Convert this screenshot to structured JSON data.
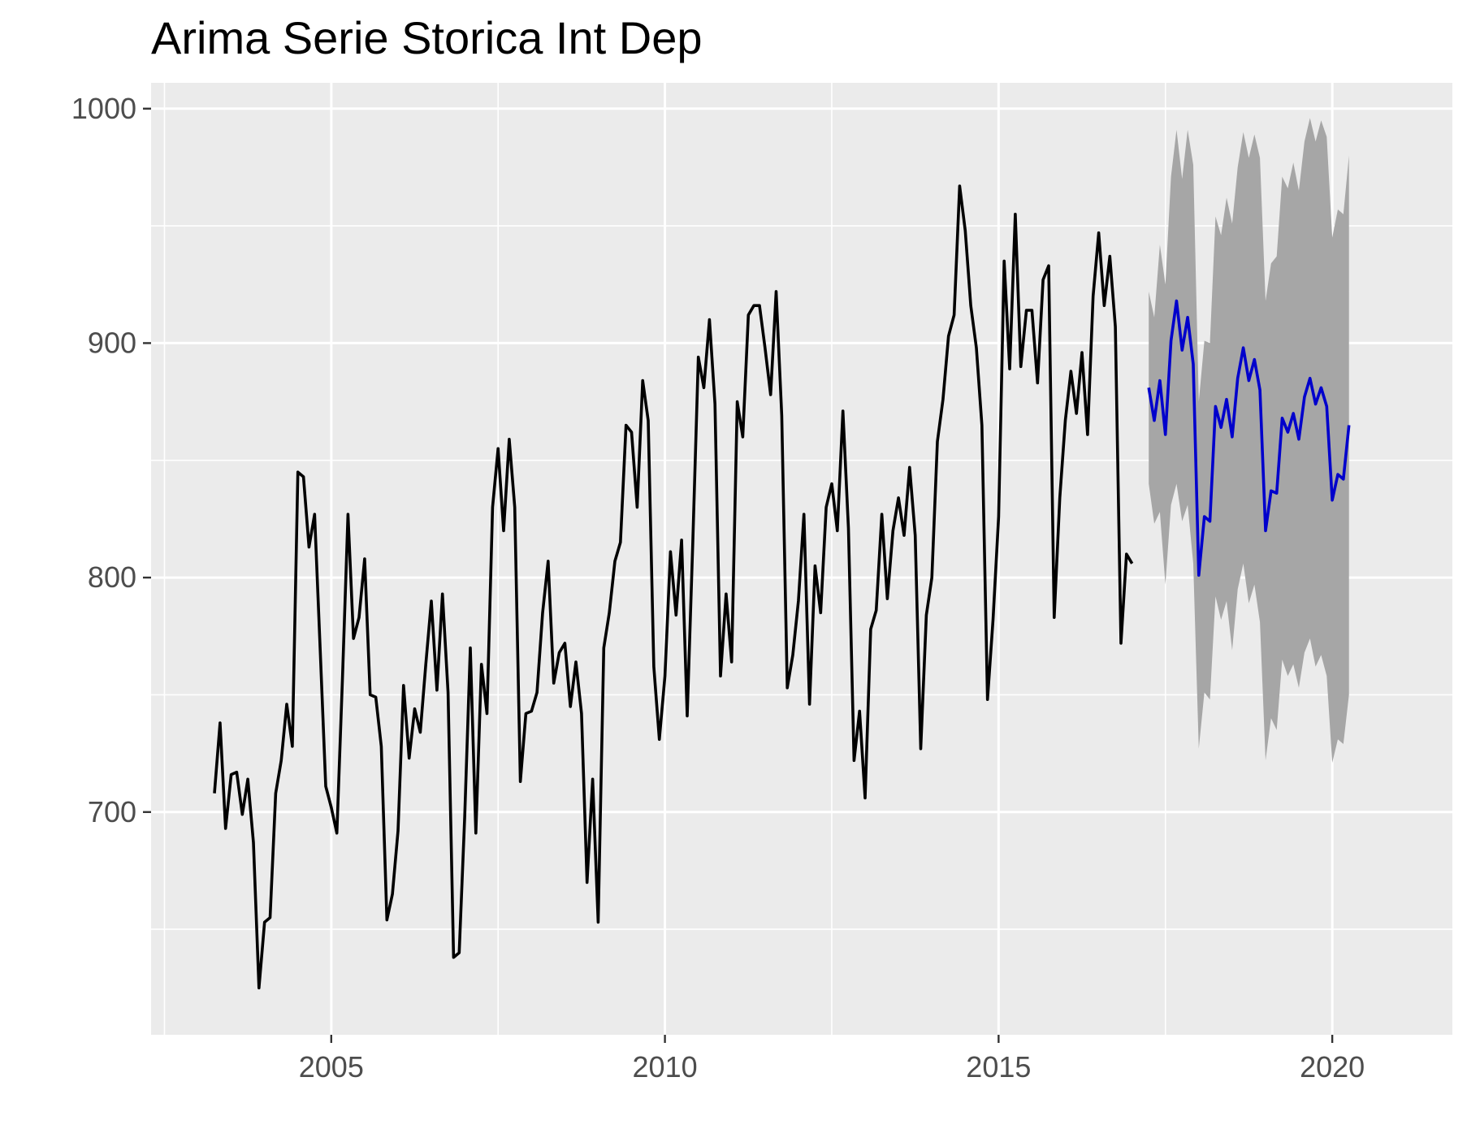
{
  "chart_data": {
    "type": "line",
    "title": "Arima Serie Storica Int Dep",
    "xlabel": "",
    "ylabel": "",
    "xlim": [
      2002.3,
      2021.8
    ],
    "ylim": [
      605,
      1011
    ],
    "x_ticks": [
      2005,
      2010,
      2015,
      2020
    ],
    "x_tick_labels": [
      "2005",
      "2010",
      "2015",
      "2020"
    ],
    "y_ticks": [
      700,
      800,
      900,
      1000
    ],
    "y_tick_labels": [
      "700",
      "800",
      "900",
      "1000"
    ],
    "grid": true,
    "legend": "none",
    "colors": {
      "panel_background": "#ebebeb",
      "grid": "#ffffff",
      "historical_line": "#000000",
      "forecast_line": "#0000cc",
      "prediction_band": "#a6a6a6",
      "tick_text": "#4d4d4d"
    },
    "series": [
      {
        "x_start": 2003.25,
        "x_step": 0.0833333,
        "values": [
          708,
          738,
          693,
          716,
          717,
          699,
          714,
          687,
          625,
          653,
          655,
          708,
          722,
          746,
          728,
          845,
          843,
          813,
          827,
          770,
          711,
          702,
          691,
          756,
          827,
          774,
          783,
          808,
          750,
          749,
          728,
          654,
          665,
          692,
          754,
          723,
          744,
          734,
          763,
          790,
          752,
          793,
          751,
          638,
          640,
          698,
          770,
          691,
          763,
          742,
          830,
          855,
          820,
          859,
          830,
          713,
          742,
          743,
          751,
          785,
          807,
          755,
          768,
          772,
          745,
          764,
          742,
          670,
          714,
          653,
          770,
          785,
          807,
          815,
          865,
          862,
          830,
          884,
          867,
          762,
          731,
          758,
          811,
          784,
          816,
          741,
          814,
          894,
          881,
          910,
          874,
          758,
          793,
          764,
          875,
          860,
          912,
          916,
          916,
          898,
          878,
          922,
          869,
          753,
          767,
          790,
          827,
          746,
          805,
          785,
          830,
          840,
          820,
          871,
          821,
          722,
          743,
          706,
          778,
          786,
          827,
          791,
          820,
          834,
          818,
          847,
          818,
          727,
          784,
          800,
          858,
          876,
          903,
          912,
          967,
          948,
          916,
          898,
          865,
          748,
          782,
          826,
          935,
          889,
          955,
          890,
          914,
          914,
          883,
          927,
          933,
          783,
          834,
          867,
          888,
          870,
          896,
          861,
          920,
          947,
          916,
          937,
          907,
          772,
          810,
          806
        ]
      },
      {
        "x_start": 2017.25,
        "x_step": 0.0833333,
        "values": [
          881,
          867,
          884,
          861,
          901,
          918,
          897,
          911,
          891,
          801,
          826,
          824,
          873,
          864,
          876,
          860,
          885,
          898,
          884,
          893,
          880,
          820,
          837,
          836,
          868,
          862,
          870,
          859,
          877,
          885,
          874,
          881,
          873,
          833,
          844,
          842,
          865
        ],
        "lower": [
          840,
          823,
          828,
          797,
          831,
          840,
          824,
          831,
          806,
          727,
          751,
          748,
          792,
          782,
          790,
          769,
          795,
          806,
          789,
          797,
          781,
          722,
          740,
          735,
          765,
          758,
          763,
          753,
          768,
          774,
          762,
          767,
          758,
          721,
          731,
          729,
          750
        ],
        "upper": [
          922,
          911,
          942,
          925,
          971,
          991,
          970,
          991,
          976,
          875,
          901,
          900,
          954,
          946,
          962,
          951,
          975,
          990,
          979,
          989,
          979,
          918,
          934,
          937,
          971,
          966,
          977,
          965,
          986,
          996,
          986,
          995,
          988,
          945,
          957,
          955,
          980
        ]
      }
    ]
  }
}
